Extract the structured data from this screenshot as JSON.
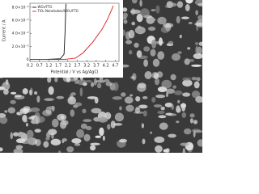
{
  "chart_data": {
    "type": "line",
    "x_label": "Potential / V vs Ag/AgCl",
    "y_label": "Current / A",
    "xlim": [
      0.2,
      4.9
    ],
    "xticks": [
      0.2,
      0.7,
      1.2,
      1.7,
      2.2,
      2.7,
      3.2,
      3.7,
      4.2,
      4.7
    ],
    "ylim": [
      -0.0003,
      0.0086
    ],
    "yticks": [
      0,
      {
        "value": 0.002,
        "label": "2.0×10⁻³"
      },
      {
        "value": 0.004,
        "label": "4.0×10⁻³"
      },
      {
        "value": 0.006,
        "label": "6.0×10⁻³"
      },
      {
        "value": 0.008,
        "label": "8.0×10⁻³"
      }
    ],
    "legend": "upper left",
    "series": [
      {
        "name": "WO₃/FTO",
        "color": "#111111",
        "x": [
          0.2,
          1.0,
          1.8,
          2.0,
          2.05,
          2.1
        ],
        "values": [
          0,
          0,
          0.0001,
          0.0008,
          0.004,
          0.0085
        ]
      },
      {
        "name": "TiO₂ Nanotubes/WO₃/FTO",
        "color": "#d42020",
        "x": [
          0.2,
          2.0,
          2.6,
          3.0,
          3.5,
          4.0,
          4.3,
          4.6
        ],
        "values": [
          0,
          0,
          0.0002,
          0.001,
          0.0026,
          0.0046,
          0.0062,
          0.0082
        ]
      }
    ]
  }
}
